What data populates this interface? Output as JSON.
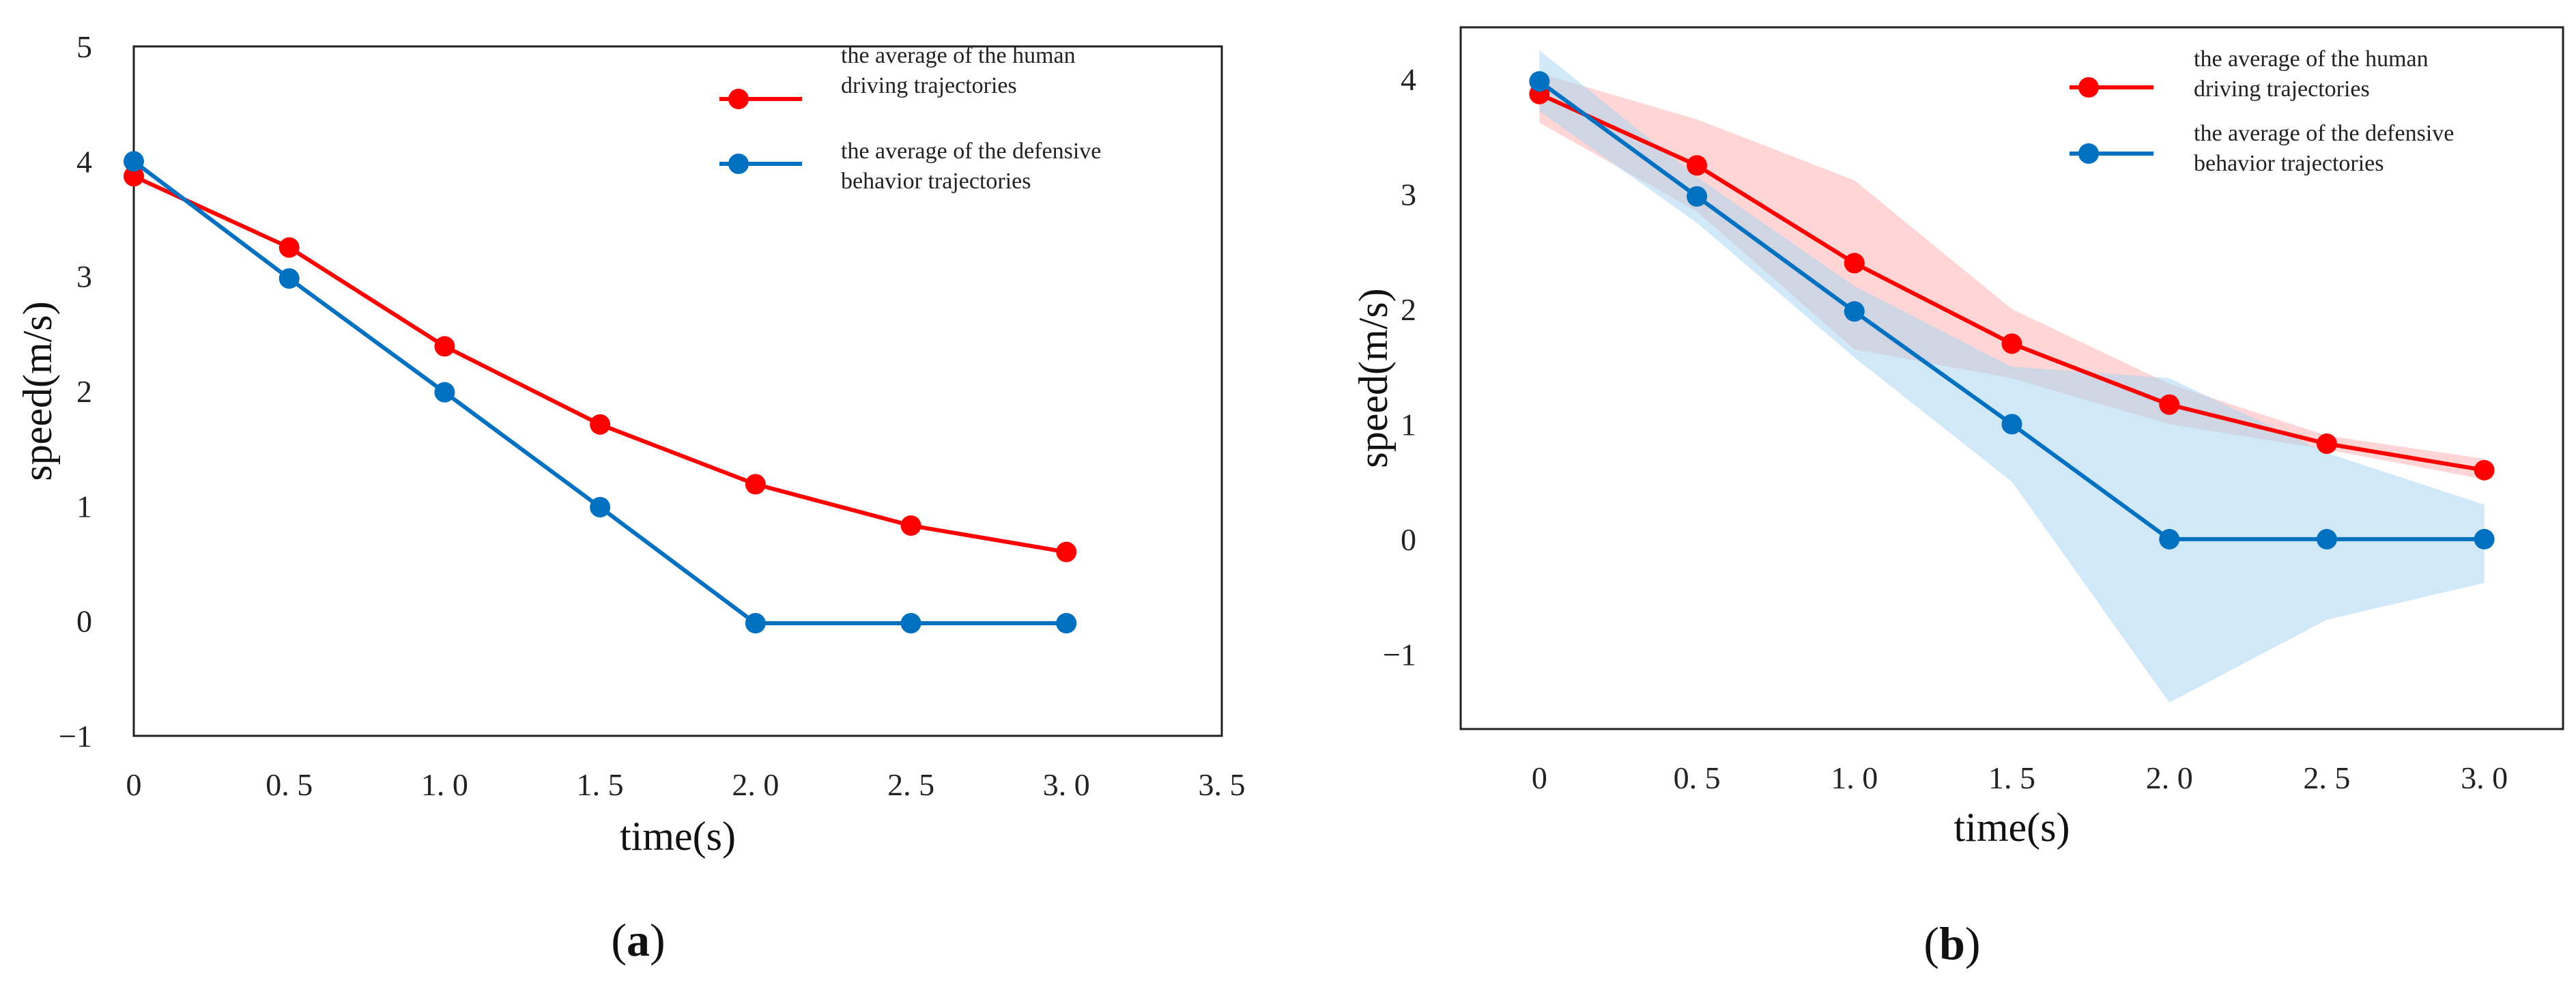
{
  "colors": {
    "human": "#ff0000",
    "defensive": "#0070c0",
    "human_band": "#ffb3b3",
    "defensive_band": "#a9d6f0",
    "axis": "#222222"
  },
  "chart_data": [
    {
      "type": "line",
      "panel": "a",
      "panel_label": {
        "open": "(",
        "letter": "a",
        "close": ")"
      },
      "xlabel": "time(s)",
      "ylabel": "speed(m/s)",
      "xlim": [
        0,
        3.5
      ],
      "ylim": [
        -1,
        5
      ],
      "xticks": [
        0,
        0.5,
        1.0,
        1.5,
        2.0,
        2.5,
        3.0,
        3.5
      ],
      "xtick_labels": [
        "0",
        "0. 5",
        "1. 0",
        "1. 5",
        "2. 0",
        "2. 5",
        "3. 0",
        "3. 5"
      ],
      "yticks": [
        -1,
        0,
        1,
        2,
        3,
        4,
        5
      ],
      "ytick_labels": [
        "−1",
        "0",
        "1",
        "2",
        "3",
        "4",
        "5"
      ],
      "x": [
        0,
        0.5,
        1.0,
        1.5,
        2.0,
        2.5,
        3.0
      ],
      "series": [
        {
          "key": "human",
          "name_lines": [
            "the average of the human",
            "driving trajectories"
          ],
          "values": [
            3.87,
            3.25,
            2.39,
            1.71,
            1.19,
            0.83,
            0.6
          ]
        },
        {
          "key": "defensive",
          "name_lines": [
            "the average of the defensive",
            "behavior trajectories"
          ],
          "values": [
            4.0,
            2.98,
            1.99,
            0.99,
            -0.02,
            -0.02,
            -0.02
          ]
        }
      ],
      "legend_position": "top-right"
    },
    {
      "type": "line",
      "panel": "b",
      "panel_label": {
        "open": "(",
        "letter": "b",
        "close": ")"
      },
      "xlabel": "time(s)",
      "ylabel": "speed(m/s)",
      "xlim": [
        -0.25,
        3.25
      ],
      "ylim": [
        -1.65,
        4.45
      ],
      "xticks": [
        0,
        0.5,
        1.0,
        1.5,
        2.0,
        2.5,
        3.0
      ],
      "xtick_labels": [
        "0",
        "0. 5",
        "1. 0",
        "1. 5",
        "2. 0",
        "2. 5",
        "3. 0"
      ],
      "yticks": [
        -1,
        0,
        1,
        2,
        3,
        4
      ],
      "ytick_labels": [
        "−1",
        "0",
        "1",
        "2",
        "3",
        "4"
      ],
      "x": [
        0,
        0.5,
        1.0,
        1.5,
        2.0,
        2.5,
        3.0
      ],
      "series": [
        {
          "key": "human",
          "name_lines": [
            "the average of the human",
            "driving trajectories"
          ],
          "values": [
            3.87,
            3.25,
            2.4,
            1.7,
            1.17,
            0.83,
            0.6
          ],
          "band_upper": [
            4.05,
            3.65,
            3.12,
            2.0,
            1.35,
            0.9,
            0.7
          ],
          "band_lower": [
            3.62,
            2.85,
            1.65,
            1.4,
            1.0,
            0.78,
            0.52
          ]
        },
        {
          "key": "defensive",
          "name_lines": [
            "the average of the defensive",
            "behavior trajectories"
          ],
          "values": [
            3.98,
            2.98,
            1.98,
            1.0,
            0.0,
            0.0,
            0.0
          ],
          "band_upper": [
            4.25,
            3.15,
            2.2,
            1.5,
            1.4,
            0.75,
            0.3
          ],
          "band_lower": [
            3.72,
            2.75,
            1.58,
            0.5,
            -1.42,
            -0.7,
            -0.38
          ]
        }
      ],
      "legend_position": "top-right"
    }
  ]
}
